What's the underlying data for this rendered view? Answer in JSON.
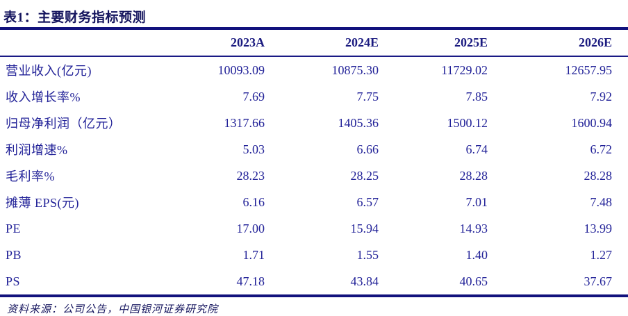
{
  "title": "表1：主要财务指标预测",
  "table": {
    "columns": [
      "2023A",
      "2024E",
      "2025E",
      "2026E"
    ],
    "rows": [
      {
        "label": "营业收入(亿元)",
        "values": [
          "10093.09",
          "10875.30",
          "11729.02",
          "12657.95"
        ]
      },
      {
        "label": "收入增长率%",
        "values": [
          "7.69",
          "7.75",
          "7.85",
          "7.92"
        ]
      },
      {
        "label": "归母净利润（亿元）",
        "values": [
          "1317.66",
          "1405.36",
          "1500.12",
          "1600.94"
        ]
      },
      {
        "label": "利润增速%",
        "values": [
          "5.03",
          "6.66",
          "6.74",
          "6.72"
        ]
      },
      {
        "label": "毛利率%",
        "values": [
          "28.23",
          "28.25",
          "28.28",
          "28.28"
        ]
      },
      {
        "label": "摊薄 EPS(元)",
        "values": [
          "6.16",
          "6.57",
          "7.01",
          "7.48"
        ]
      },
      {
        "label": "PE",
        "values": [
          "17.00",
          "15.94",
          "14.93",
          "13.99"
        ]
      },
      {
        "label": "PB",
        "values": [
          "1.71",
          "1.55",
          "1.40",
          "1.27"
        ]
      },
      {
        "label": "PS",
        "values": [
          "47.18",
          "43.84",
          "40.65",
          "37.67"
        ]
      }
    ]
  },
  "footer": {
    "source": "资料来源：公司公告，中国银河证券研究院"
  },
  "colors": {
    "rule_navy": "#12127d",
    "title_text": "#15155e",
    "header_text": "#1b1b80",
    "cell_text": "#222298",
    "background": "#ffffff"
  }
}
